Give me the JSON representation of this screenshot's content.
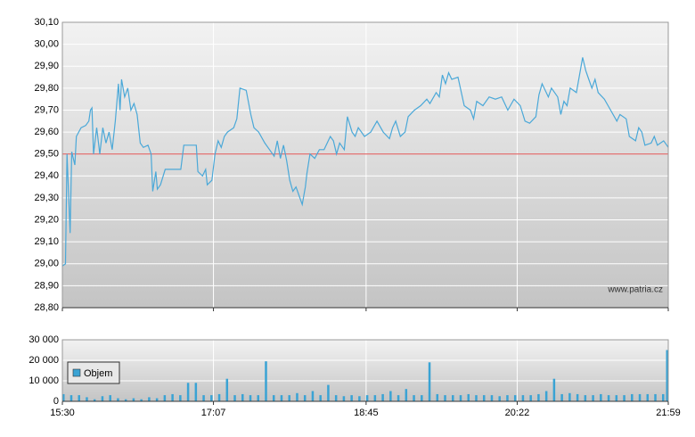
{
  "chart_data": [
    {
      "type": "line",
      "annotation": "www.patria.cz",
      "xlim": [
        0,
        389
      ],
      "ylim": [
        28.8,
        30.1
      ],
      "yticks": [
        {
          "value": 28.8,
          "label": "28,80"
        },
        {
          "value": 28.9,
          "label": "28,90"
        },
        {
          "value": 29.0,
          "label": "29,00"
        },
        {
          "value": 29.1,
          "label": "29,10"
        },
        {
          "value": 29.2,
          "label": "29,20"
        },
        {
          "value": 29.3,
          "label": "29,30"
        },
        {
          "value": 29.4,
          "label": "29,40"
        },
        {
          "value": 29.5,
          "label": "29,50"
        },
        {
          "value": 29.6,
          "label": "29,60"
        },
        {
          "value": 29.7,
          "label": "29,70"
        },
        {
          "value": 29.8,
          "label": "29,80"
        },
        {
          "value": 29.9,
          "label": "29,90"
        },
        {
          "value": 30.0,
          "label": "30,00"
        },
        {
          "value": 30.1,
          "label": "30,10"
        }
      ],
      "grid": true,
      "reference_line": {
        "value": 29.5,
        "color": "#e06060"
      },
      "x": [
        0,
        2,
        3,
        5,
        6,
        8,
        9,
        12,
        15,
        17,
        18,
        19,
        20,
        22,
        24,
        26,
        28,
        30,
        32,
        34,
        36,
        37,
        38,
        40,
        42,
        44,
        46,
        48,
        50,
        52,
        55,
        57,
        58,
        60,
        61,
        63,
        66,
        70,
        76,
        78,
        82,
        86,
        87,
        90,
        92,
        93,
        96,
        98,
        100,
        102,
        104,
        106,
        110,
        112,
        114,
        118,
        121,
        123,
        126,
        130,
        133,
        136,
        138,
        140,
        142,
        144,
        146,
        148,
        150,
        152,
        154,
        156,
        157,
        159,
        162,
        165,
        168,
        172,
        174,
        176,
        178,
        181,
        183,
        186,
        188,
        190,
        194,
        198,
        202,
        206,
        210,
        212,
        214,
        217,
        220,
        222,
        226,
        230,
        234,
        236,
        240,
        242,
        244,
        246,
        248,
        250,
        254,
        258,
        262,
        264,
        266,
        270,
        274,
        278,
        282,
        286,
        290,
        294,
        297,
        300,
        304,
        306,
        308,
        312,
        314,
        318,
        320,
        322,
        324,
        326,
        330,
        334,
        336,
        338,
        340,
        342,
        344,
        348,
        352,
        356,
        358,
        362,
        364,
        368,
        370,
        372,
        374,
        378,
        380,
        382,
        384,
        386,
        388,
        389
      ],
      "series": [
        {
          "color": "#4aa8d8",
          "values": [
            28.99,
            29.0,
            29.5,
            29.14,
            29.51,
            29.45,
            29.58,
            29.62,
            29.63,
            29.65,
            29.7,
            29.71,
            29.5,
            29.62,
            29.5,
            29.62,
            29.55,
            29.6,
            29.52,
            29.65,
            29.82,
            29.7,
            29.84,
            29.76,
            29.8,
            29.7,
            29.73,
            29.68,
            29.55,
            29.53,
            29.54,
            29.5,
            29.33,
            29.42,
            29.34,
            29.36,
            29.43,
            29.43,
            29.43,
            29.54,
            29.54,
            29.54,
            29.42,
            29.4,
            29.43,
            29.36,
            29.38,
            29.5,
            29.56,
            29.53,
            29.58,
            29.6,
            29.62,
            29.66,
            29.8,
            29.79,
            29.68,
            29.62,
            29.6,
            29.55,
            29.52,
            29.49,
            29.56,
            29.48,
            29.54,
            29.47,
            29.38,
            29.33,
            29.35,
            29.31,
            29.27,
            29.35,
            29.41,
            29.5,
            29.48,
            29.52,
            29.52,
            29.58,
            29.56,
            29.5,
            29.55,
            29.52,
            29.67,
            29.6,
            29.58,
            29.62,
            29.58,
            29.6,
            29.65,
            29.6,
            29.57,
            29.62,
            29.65,
            29.58,
            29.6,
            29.67,
            29.7,
            29.72,
            29.75,
            29.73,
            29.78,
            29.76,
            29.86,
            29.82,
            29.87,
            29.84,
            29.85,
            29.72,
            29.7,
            29.66,
            29.74,
            29.72,
            29.76,
            29.75,
            29.76,
            29.7,
            29.75,
            29.72,
            29.65,
            29.64,
            29.67,
            29.77,
            29.82,
            29.76,
            29.8,
            29.76,
            29.68,
            29.74,
            29.72,
            29.8,
            29.78,
            29.94,
            29.88,
            29.84,
            29.8,
            29.84,
            29.78,
            29.75,
            29.7,
            29.65,
            29.68,
            29.66,
            29.58,
            29.56,
            29.62,
            29.6,
            29.54,
            29.55,
            29.58,
            29.54,
            29.55,
            29.56,
            29.54,
            29.53
          ]
        }
      ]
    },
    {
      "type": "bar",
      "legend": "upper left",
      "xlim": [
        0,
        389
      ],
      "xticks": [
        {
          "value": 0,
          "label": "15:30"
        },
        {
          "value": 97,
          "label": "17:07"
        },
        {
          "value": 195,
          "label": "18:45"
        },
        {
          "value": 292,
          "label": "20:22"
        },
        {
          "value": 389,
          "label": "21:59"
        }
      ],
      "ylim": [
        0,
        30000
      ],
      "yticks": [
        0,
        {
          "value": 10000,
          "label": "10 000"
        },
        {
          "value": 20000,
          "label": "20 000"
        },
        {
          "value": 30000,
          "label": "30 000"
        }
      ],
      "grid": true,
      "x": [
        0,
        5,
        10,
        15,
        20,
        25,
        30,
        35,
        40,
        45,
        50,
        55,
        60,
        65,
        70,
        75,
        80,
        85,
        90,
        95,
        100,
        105,
        110,
        115,
        120,
        125,
        130,
        135,
        140,
        145,
        150,
        155,
        160,
        165,
        170,
        175,
        180,
        185,
        190,
        195,
        200,
        205,
        210,
        215,
        220,
        225,
        230,
        235,
        240,
        245,
        250,
        255,
        260,
        265,
        270,
        275,
        280,
        285,
        290,
        295,
        300,
        305,
        310,
        315,
        320,
        325,
        330,
        335,
        340,
        345,
        350,
        355,
        360,
        365,
        370,
        375,
        380,
        385,
        389
      ],
      "series": [
        {
          "name": "Objem",
          "color": "#3aa3d4",
          "values": [
            3500,
            3000,
            3000,
            2000,
            1000,
            2500,
            3000,
            1500,
            1000,
            1500,
            1000,
            2000,
            1500,
            3000,
            3500,
            3000,
            9000,
            9000,
            3000,
            3000,
            3500,
            11000,
            3000,
            3500,
            3000,
            3000,
            19500,
            3000,
            3000,
            3000,
            4000,
            3000,
            5000,
            3000,
            8000,
            3000,
            2500,
            3000,
            2500,
            3000,
            3000,
            3500,
            5000,
            3000,
            6000,
            3000,
            3000,
            19000,
            3500,
            3000,
            3000,
            3000,
            3500,
            3000,
            3000,
            3000,
            2500,
            3000,
            3000,
            3000,
            3000,
            3500,
            5000,
            11000,
            3500,
            4000,
            3500,
            3000,
            3000,
            3500,
            3000,
            3000,
            3000,
            3500,
            3500,
            3500,
            3500,
            3500,
            25000
          ]
        }
      ]
    }
  ]
}
